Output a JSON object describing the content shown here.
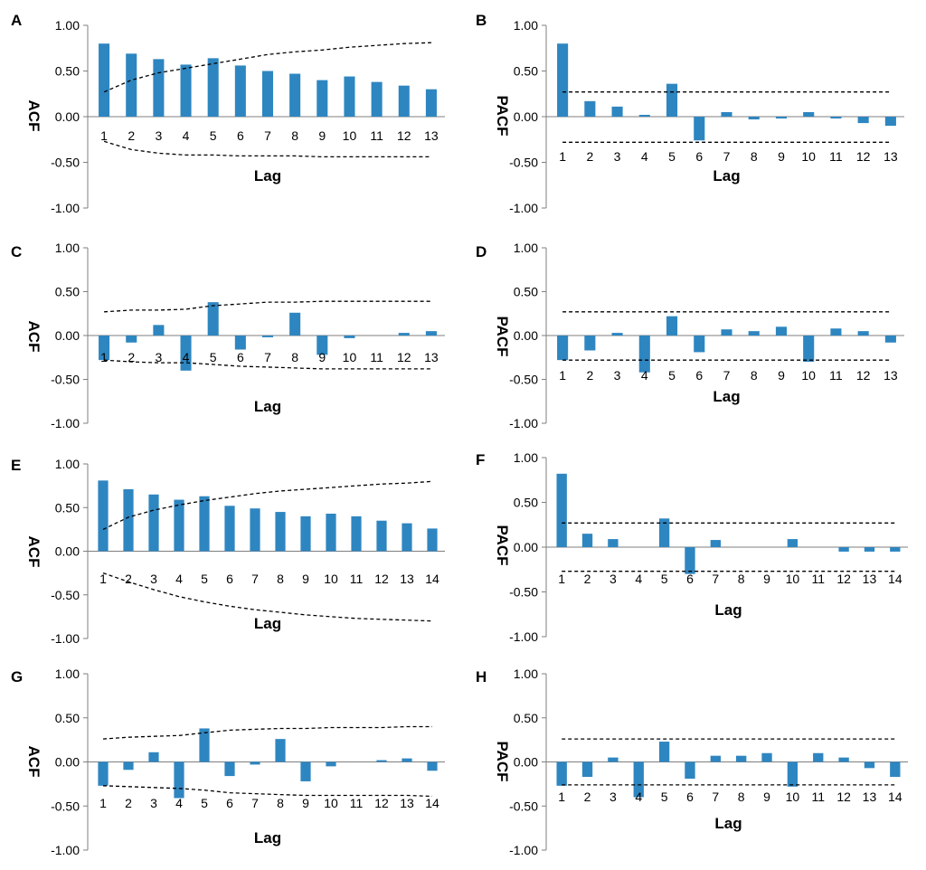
{
  "figure_title": "",
  "colors": {
    "bar": "#2E86C1",
    "axis": "#7f7f7f",
    "ci_line": "#000000"
  },
  "chart_data": [
    {
      "panel": "A",
      "type": "bar",
      "ylabel": "ACF",
      "xlabel": "Lag",
      "ylim": [
        -1,
        1
      ],
      "yticks": [
        "1.00",
        "0.50",
        "0.00",
        "-0.50",
        "-1.00"
      ],
      "categories": [
        "1",
        "2",
        "3",
        "4",
        "5",
        "6",
        "7",
        "8",
        "9",
        "10",
        "11",
        "12",
        "13"
      ],
      "values": [
        0.8,
        0.69,
        0.63,
        0.57,
        0.64,
        0.56,
        0.5,
        0.47,
        0.4,
        0.44,
        0.38,
        0.34,
        0.3
      ],
      "ci_upper": [
        0.27,
        0.4,
        0.48,
        0.53,
        0.58,
        0.63,
        0.68,
        0.71,
        0.73,
        0.76,
        0.78,
        0.8,
        0.81
      ],
      "ci_lower": [
        -0.27,
        -0.36,
        -0.4,
        -0.42,
        -0.42,
        -0.43,
        -0.43,
        -0.43,
        -0.44,
        -0.44,
        -0.44,
        -0.44,
        -0.44
      ]
    },
    {
      "panel": "B",
      "type": "bar",
      "ylabel": "PACF",
      "xlabel": "Lag",
      "ylim": [
        -1,
        1
      ],
      "yticks": [
        "1.00",
        "0.50",
        "0.00",
        "-0.50",
        "-1.00"
      ],
      "categories": [
        "1",
        "2",
        "3",
        "4",
        "5",
        "6",
        "7",
        "8",
        "9",
        "10",
        "11",
        "12",
        "13"
      ],
      "values": [
        0.8,
        0.17,
        0.11,
        0.02,
        0.36,
        -0.26,
        0.05,
        -0.03,
        -0.02,
        0.05,
        -0.02,
        -0.07,
        -0.1
      ],
      "ci_upper": [
        0.27,
        0.27,
        0.27,
        0.27,
        0.27,
        0.27,
        0.27,
        0.27,
        0.27,
        0.27,
        0.27,
        0.27,
        0.27
      ],
      "ci_lower": [
        -0.28,
        -0.28,
        -0.28,
        -0.28,
        -0.28,
        -0.28,
        -0.28,
        -0.28,
        -0.28,
        -0.28,
        -0.28,
        -0.28,
        -0.28
      ]
    },
    {
      "panel": "C",
      "type": "bar",
      "ylabel": "ACF",
      "xlabel": "Lag",
      "ylim": [
        -1,
        1
      ],
      "yticks": [
        "1.00",
        "0.50",
        "0.00",
        "-0.50",
        "-1.00"
      ],
      "categories": [
        "1",
        "2",
        "3",
        "4",
        "5",
        "6",
        "7",
        "8",
        "9",
        "10",
        "11",
        "12",
        "13"
      ],
      "values": [
        -0.28,
        -0.08,
        0.12,
        -0.4,
        0.38,
        -0.16,
        -0.02,
        0.26,
        -0.22,
        -0.03,
        0.0,
        0.03,
        0.05
      ],
      "ci_upper": [
        0.27,
        0.29,
        0.29,
        0.3,
        0.34,
        0.36,
        0.38,
        0.38,
        0.39,
        0.39,
        0.39,
        0.39,
        0.39
      ],
      "ci_lower": [
        -0.28,
        -0.3,
        -0.31,
        -0.31,
        -0.33,
        -0.35,
        -0.36,
        -0.37,
        -0.38,
        -0.38,
        -0.38,
        -0.38,
        -0.38
      ]
    },
    {
      "panel": "D",
      "type": "bar",
      "ylabel": "PACF",
      "xlabel": "Lag",
      "ylim": [
        -1,
        1
      ],
      "yticks": [
        "1.00",
        "0.50",
        "0.00",
        "-0.50",
        "-1.00"
      ],
      "categories": [
        "1",
        "2",
        "3",
        "4",
        "5",
        "6",
        "7",
        "8",
        "9",
        "10",
        "11",
        "12",
        "13"
      ],
      "values": [
        -0.28,
        -0.17,
        0.03,
        -0.42,
        0.22,
        -0.19,
        0.07,
        0.05,
        0.1,
        -0.3,
        0.08,
        0.05,
        -0.08
      ],
      "ci_upper": [
        0.27,
        0.27,
        0.27,
        0.27,
        0.27,
        0.27,
        0.27,
        0.27,
        0.27,
        0.27,
        0.27,
        0.27,
        0.27
      ],
      "ci_lower": [
        -0.28,
        -0.28,
        -0.28,
        -0.28,
        -0.28,
        -0.28,
        -0.28,
        -0.28,
        -0.28,
        -0.28,
        -0.28,
        -0.28,
        -0.28
      ]
    },
    {
      "panel": "E",
      "type": "bar",
      "ylabel": "ACF",
      "xlabel": "Lag",
      "ylim": [
        -1,
        1
      ],
      "yticks": [
        "1.00",
        "0.50",
        "0.00",
        "-0.50",
        "-1.00"
      ],
      "categories": [
        "1",
        "2",
        "3",
        "4",
        "5",
        "6",
        "7",
        "8",
        "9",
        "10",
        "11",
        "12",
        "13",
        "14"
      ],
      "values": [
        0.81,
        0.71,
        0.65,
        0.59,
        0.63,
        0.52,
        0.49,
        0.45,
        0.4,
        0.43,
        0.4,
        0.35,
        0.32,
        0.26
      ],
      "ci_upper": [
        0.25,
        0.39,
        0.47,
        0.53,
        0.58,
        0.62,
        0.66,
        0.69,
        0.71,
        0.73,
        0.75,
        0.77,
        0.78,
        0.8
      ],
      "ci_lower": [
        -0.25,
        -0.35,
        -0.44,
        -0.52,
        -0.58,
        -0.63,
        -0.67,
        -0.7,
        -0.73,
        -0.75,
        -0.77,
        -0.78,
        -0.79,
        -0.8
      ]
    },
    {
      "panel": "F",
      "type": "bar",
      "ylabel": "PACF",
      "xlabel": "Lag",
      "ylim": [
        -1,
        1
      ],
      "yticks": [
        "1.00",
        "0.50",
        "0.00",
        "-0.50",
        "-1.00"
      ],
      "categories": [
        "1",
        "2",
        "3",
        "4",
        "5",
        "6",
        "7",
        "8",
        "9",
        "10",
        "11",
        "12",
        "13",
        "14"
      ],
      "values": [
        0.82,
        0.15,
        0.09,
        0.0,
        0.32,
        -0.3,
        0.08,
        0.0,
        0.0,
        0.09,
        0.0,
        -0.05,
        -0.05,
        -0.05
      ],
      "ci_upper": [
        0.27,
        0.27,
        0.27,
        0.27,
        0.27,
        0.27,
        0.27,
        0.27,
        0.27,
        0.27,
        0.27,
        0.27,
        0.27,
        0.27
      ],
      "ci_lower": [
        -0.27,
        -0.27,
        -0.27,
        -0.27,
        -0.27,
        -0.27,
        -0.27,
        -0.27,
        -0.27,
        -0.27,
        -0.27,
        -0.27,
        -0.27,
        -0.27
      ]
    },
    {
      "panel": "G",
      "type": "bar",
      "ylabel": "ACF",
      "xlabel": "Lag",
      "ylim": [
        -1,
        1
      ],
      "yticks": [
        "1.00",
        "0.50",
        "0.00",
        "-0.50",
        "-1.00"
      ],
      "categories": [
        "1",
        "2",
        "3",
        "4",
        "5",
        "6",
        "7",
        "8",
        "9",
        "10",
        "11",
        "12",
        "13",
        "14"
      ],
      "values": [
        -0.27,
        -0.09,
        0.11,
        -0.41,
        0.38,
        -0.16,
        -0.03,
        0.26,
        -0.22,
        -0.05,
        0.0,
        0.02,
        0.04,
        -0.1
      ],
      "ci_upper": [
        0.26,
        0.28,
        0.29,
        0.3,
        0.33,
        0.36,
        0.37,
        0.38,
        0.38,
        0.39,
        0.39,
        0.39,
        0.4,
        0.4
      ],
      "ci_lower": [
        -0.27,
        -0.28,
        -0.29,
        -0.3,
        -0.32,
        -0.35,
        -0.36,
        -0.37,
        -0.38,
        -0.38,
        -0.38,
        -0.38,
        -0.38,
        -0.39
      ]
    },
    {
      "panel": "H",
      "type": "bar",
      "ylabel": "PACF",
      "xlabel": "Lag",
      "ylim": [
        -1,
        1
      ],
      "yticks": [
        "1.00",
        "0.50",
        "0.00",
        "-0.50",
        "-1.00"
      ],
      "categories": [
        "1",
        "2",
        "3",
        "4",
        "5",
        "6",
        "7",
        "8",
        "9",
        "10",
        "11",
        "12",
        "13",
        "14"
      ],
      "values": [
        -0.27,
        -0.17,
        0.05,
        -0.4,
        0.23,
        -0.19,
        0.07,
        0.07,
        0.1,
        -0.28,
        0.1,
        0.05,
        -0.07,
        -0.17
      ],
      "ci_upper": [
        0.26,
        0.26,
        0.26,
        0.26,
        0.26,
        0.26,
        0.26,
        0.26,
        0.26,
        0.26,
        0.26,
        0.26,
        0.26,
        0.26
      ],
      "ci_lower": [
        -0.26,
        -0.26,
        -0.26,
        -0.26,
        -0.26,
        -0.26,
        -0.26,
        -0.26,
        -0.26,
        -0.26,
        -0.26,
        -0.26,
        -0.26,
        -0.26
      ]
    }
  ]
}
